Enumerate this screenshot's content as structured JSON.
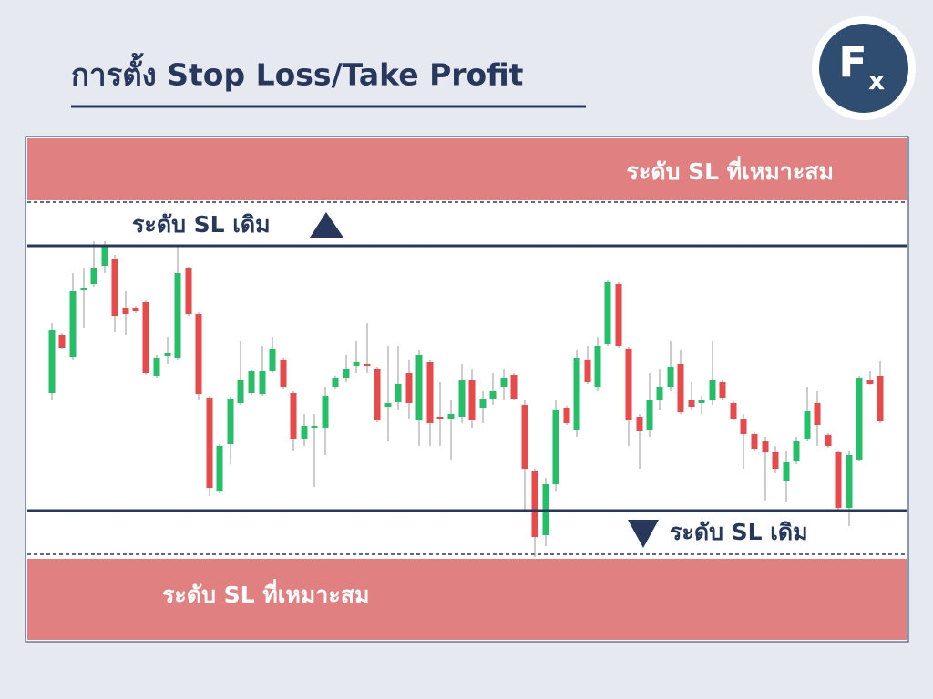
{
  "header": {
    "title": "การตั้ง Stop Loss/Take Profit",
    "logo": {
      "letter": "F",
      "subscript": "x"
    }
  },
  "levels": {
    "upper_band": "ระดับ SL ที่เหมาะสม",
    "upper_line": "ระดับ SL เดิม",
    "lower_line": "ระดับ SL เดิม",
    "lower_band": "ระดับ SL ที่เหมาะสม"
  }
}
